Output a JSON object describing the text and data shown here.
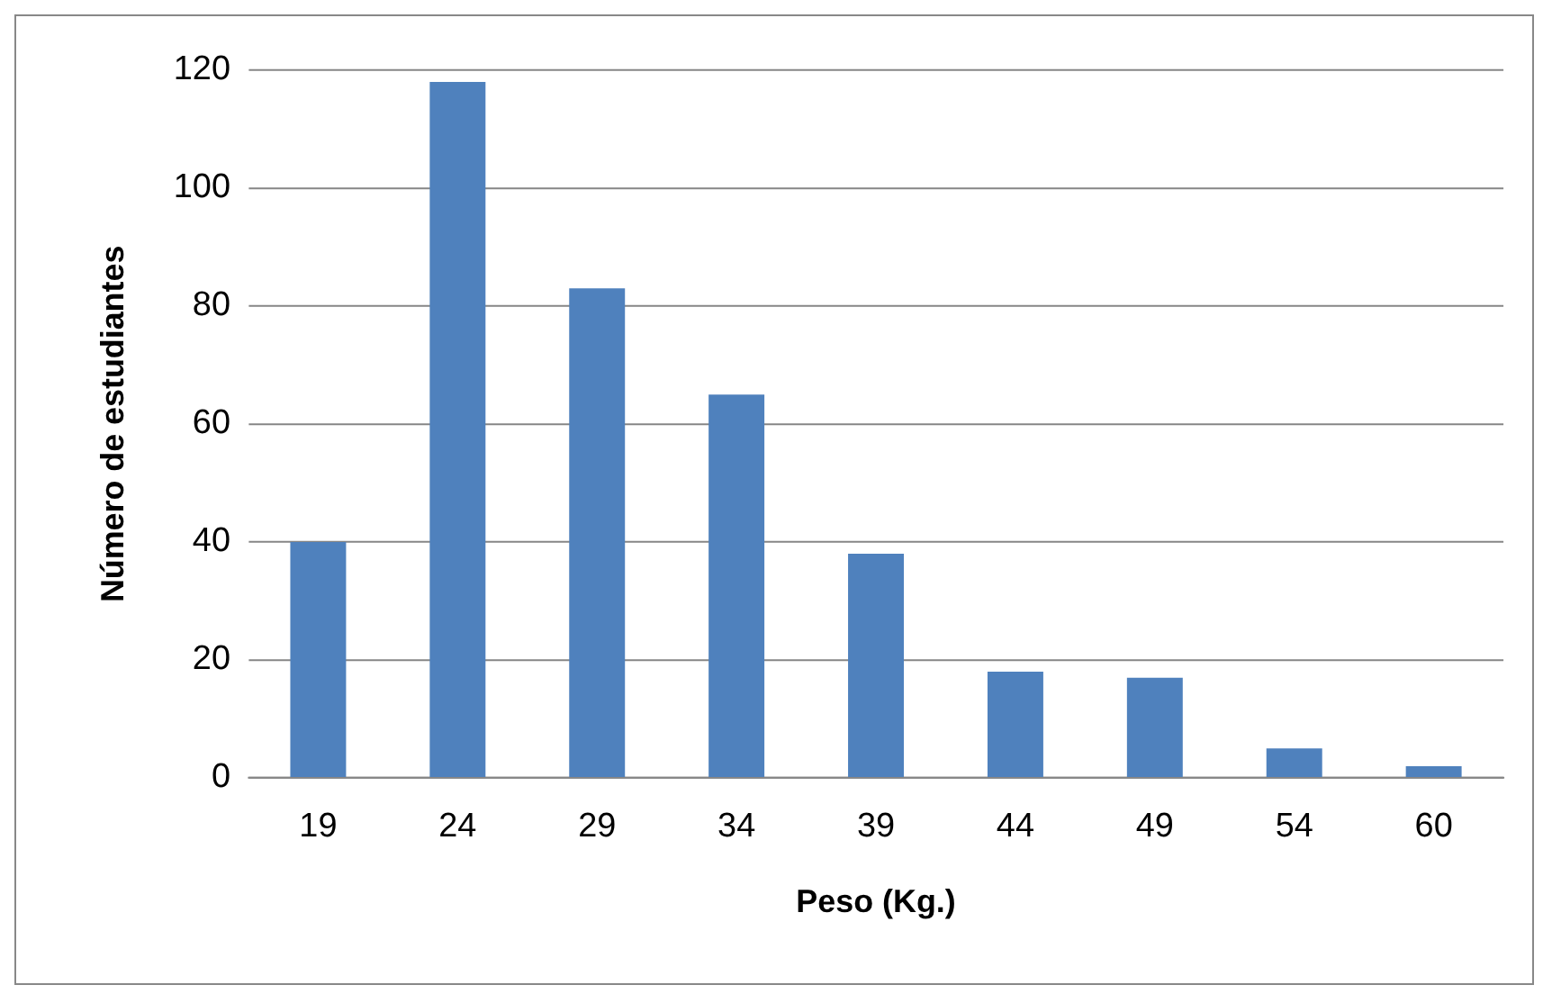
{
  "chart_data": {
    "type": "bar",
    "xlabel": "Peso (Kg.)",
    "ylabel": "Número de estudiantes",
    "categories": [
      "19",
      "24",
      "29",
      "34",
      "39",
      "44",
      "49",
      "54",
      "60"
    ],
    "values": [
      40,
      118,
      83,
      65,
      38,
      18,
      17,
      5,
      2
    ],
    "color": "#4f81bd",
    "ylim": [
      0,
      120
    ],
    "yticks": [
      0,
      20,
      40,
      60,
      80,
      100,
      120
    ],
    "grid": "y",
    "legend": false
  }
}
